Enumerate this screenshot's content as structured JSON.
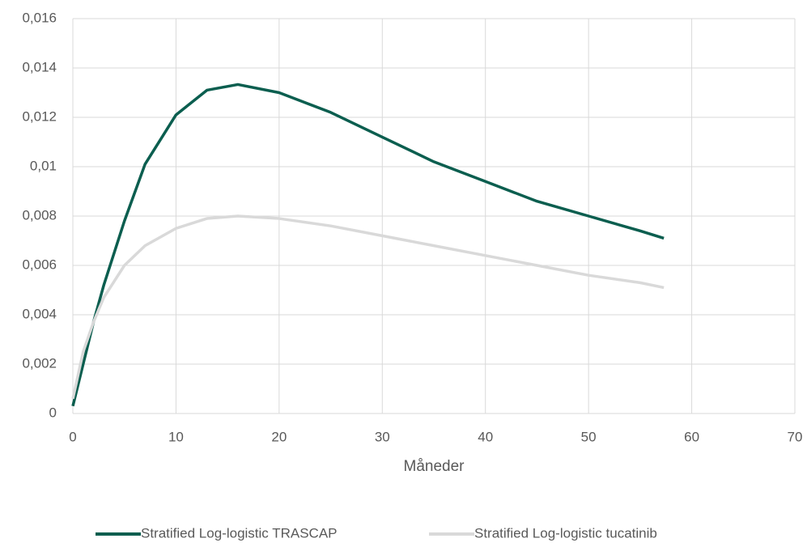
{
  "chart_data": {
    "type": "line",
    "xlabel": "Måneder",
    "x": [
      0,
      1,
      2,
      3,
      5,
      7,
      10,
      13,
      16,
      20,
      25,
      30,
      35,
      40,
      45,
      50,
      55,
      57.3
    ],
    "series": [
      {
        "name": "Stratified Log-logistic TRASCAP",
        "color": "#0b5e4f",
        "values": [
          0.0003,
          0.002,
          0.0037,
          0.0052,
          0.0078,
          0.0101,
          0.0121,
          0.0131,
          0.01333,
          0.013,
          0.0122,
          0.0112,
          0.0102,
          0.0094,
          0.0086,
          0.008,
          0.0074,
          0.0071
        ]
      },
      {
        "name": "Stratified Log-logistic tucatinib",
        "color": "#d9d9d9",
        "values": [
          0.0006,
          0.0025,
          0.0037,
          0.0047,
          0.006,
          0.0068,
          0.0075,
          0.0079,
          0.008,
          0.0079,
          0.0076,
          0.0072,
          0.0068,
          0.0064,
          0.006,
          0.0056,
          0.0053,
          0.0051
        ]
      }
    ],
    "xlim": [
      0,
      70
    ],
    "xticks": [
      0,
      10,
      20,
      30,
      40,
      50,
      60,
      70
    ],
    "ylim": [
      0,
      0.016
    ],
    "yticks": [
      0,
      {
        "value": 0.002,
        "label": "0,002"
      },
      {
        "value": 0.004,
        "label": "0,004"
      },
      {
        "value": 0.006,
        "label": "0,006"
      },
      {
        "value": 0.008,
        "label": "0,008"
      },
      {
        "value": 0.01,
        "label": "0,01"
      },
      {
        "value": 0.012,
        "label": "0,012"
      },
      {
        "value": 0.014,
        "label": "0,014"
      },
      {
        "value": 0.016,
        "label": "0,016"
      }
    ],
    "grid": true,
    "legend": "bottom"
  }
}
